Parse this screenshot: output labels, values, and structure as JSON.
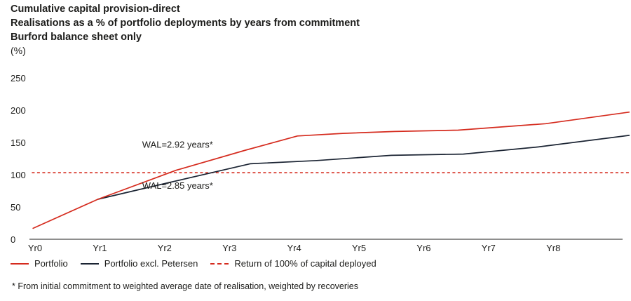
{
  "chart_data": {
    "type": "line",
    "title": "Cumulative capital provision-direct",
    "subtitle": "Realisations as a % of portfolio deployments by years from commitment",
    "subtitle2": "Burford balance sheet only",
    "ylabel": "(%)",
    "xlabel": "",
    "ylim": [
      0,
      250
    ],
    "yticks": [
      0,
      50,
      100,
      150,
      200,
      250
    ],
    "categories": [
      "Yr0",
      "Yr1",
      "Yr2",
      "Yr3",
      "Yr4",
      "Yr5",
      "Yr6",
      "Yr7",
      "Yr8"
    ],
    "x": [
      0,
      1,
      2,
      3,
      4,
      5,
      6,
      7,
      8
    ],
    "series": [
      {
        "name": "Portfolio",
        "color": "#d52b1e",
        "style": "solid",
        "x": [
          -0.03,
          0.97,
          2.18,
          3.25,
          4.05,
          4.75,
          5.55,
          6.53,
          7.88,
          9.17
        ],
        "values": [
          17,
          62,
          107,
          138,
          160,
          164,
          167,
          169,
          179,
          197
        ]
      },
      {
        "name": "Portfolio excl. Petersen",
        "color": "#1b2433",
        "style": "solid",
        "x": [
          0.97,
          2.03,
          3.32,
          4.35,
          5.5,
          6.61,
          7.77,
          9.17
        ],
        "values": [
          62,
          87,
          117,
          122,
          130,
          132,
          143,
          161
        ]
      },
      {
        "name": "Return of 100% of capital deployed",
        "color": "#d52b1e",
        "style": "dashed",
        "x": [
          -0.05,
          9.17
        ],
        "values": [
          103,
          103
        ]
      }
    ],
    "annotations": [
      {
        "text": "WAL=2.92 years*",
        "x": 2.2,
        "y": 142
      },
      {
        "text": "WAL=2.85 years*",
        "x": 2.2,
        "y": 78
      }
    ],
    "grid": false
  },
  "footnote": "*  From initial commitment to weighted average date of realisation, weighted by recoveries"
}
